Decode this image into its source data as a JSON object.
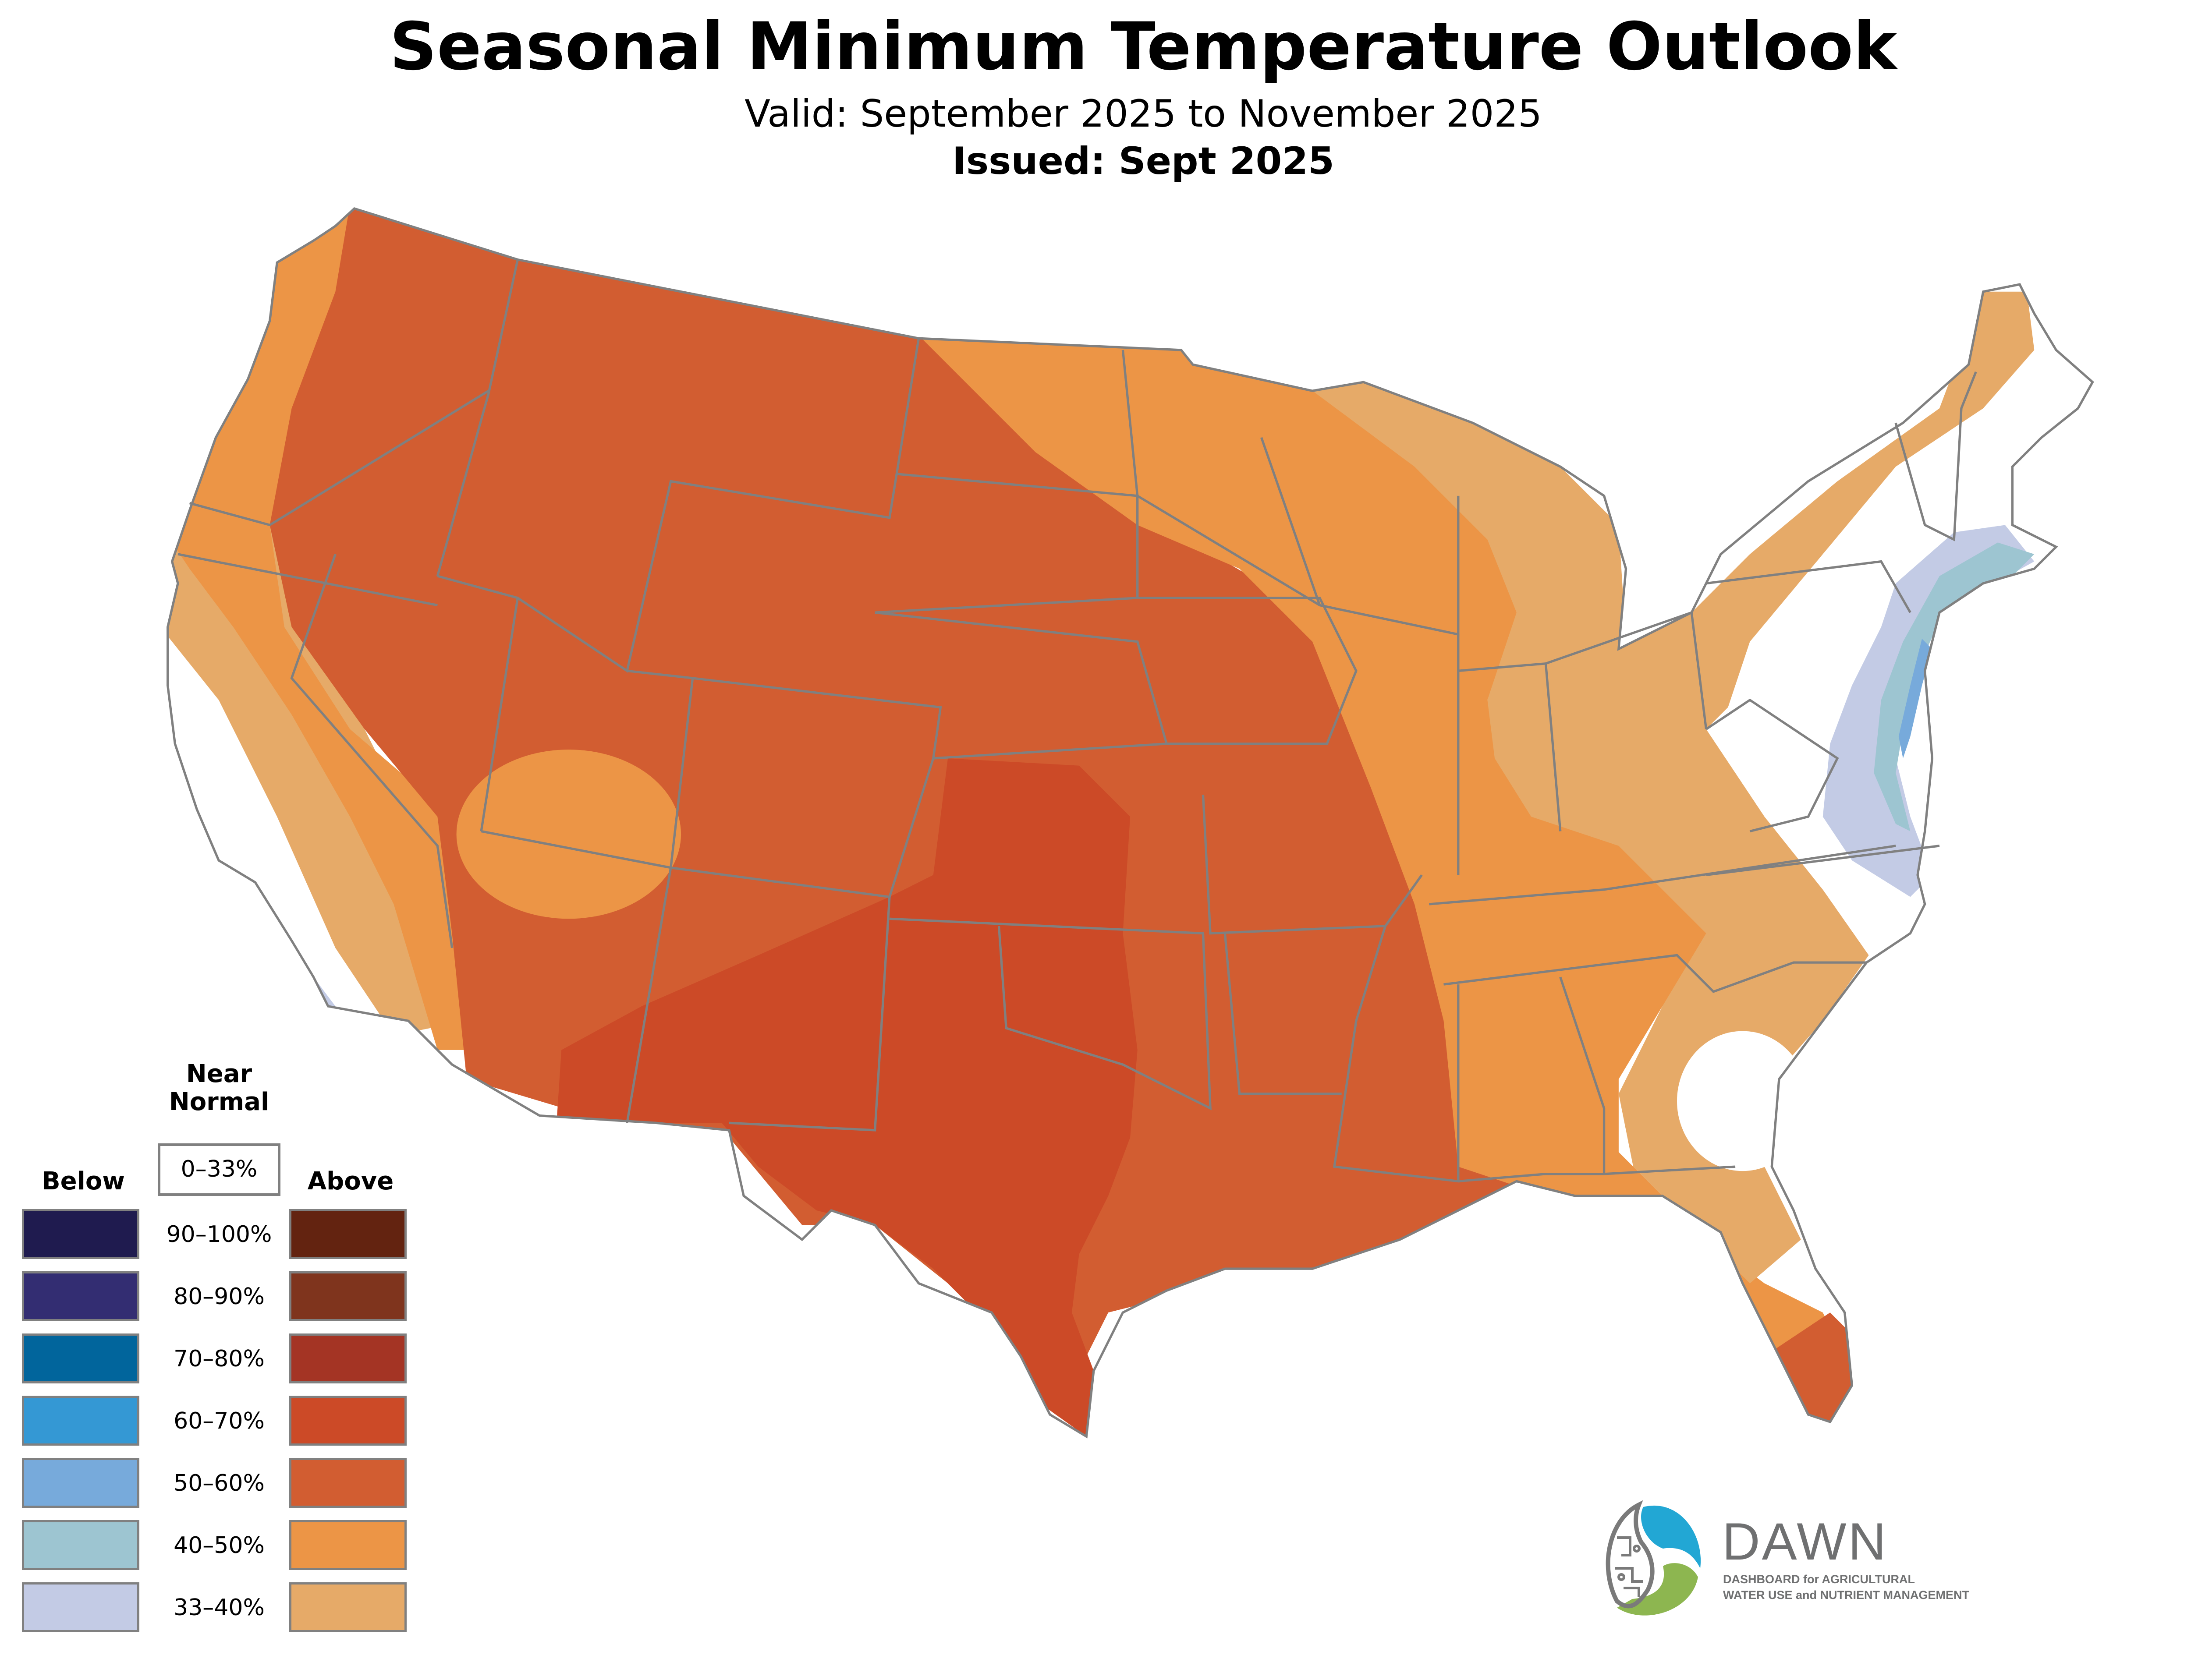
{
  "header": {
    "title": "Seasonal Minimum Temperature Outlook",
    "valid": "Valid: September 2025 to November 2025",
    "issued": "Issued: Sept 2025"
  },
  "legend": {
    "below_label": "Below",
    "above_label": "Above",
    "near_normal_label_line1": "Near",
    "near_normal_label_line2": "Normal",
    "near_normal_range": "0–33%",
    "rows": [
      {
        "range": "90–100%",
        "below_color": "#1f1b4f",
        "above_color": "#632310"
      },
      {
        "range": "80–90%",
        "below_color": "#332d72",
        "above_color": "#7f341d"
      },
      {
        "range": "70–80%",
        "below_color": "#01659c",
        "above_color": "#a43424"
      },
      {
        "range": "60–70%",
        "below_color": "#3498d4",
        "above_color": "#cc4a27"
      },
      {
        "range": "50–60%",
        "below_color": "#77aadb",
        "above_color": "#d25d31"
      },
      {
        "range": "40–50%",
        "below_color": "#9dc5d1",
        "above_color": "#ec9546"
      },
      {
        "range": "33–40%",
        "below_color": "#c3cbe5",
        "above_color": "#e6aa68"
      }
    ]
  },
  "map": {
    "regions": [
      {
        "name": "above-33-40-west-coast",
        "category": "Above",
        "range": "33–40%"
      },
      {
        "name": "above-40-50-west-coast",
        "category": "Above",
        "range": "40–50%"
      },
      {
        "name": "above-50-60-interior-west",
        "category": "Above",
        "range": "50–60%"
      },
      {
        "name": "above-40-50-four-corners",
        "category": "Above",
        "range": "40–50%"
      },
      {
        "name": "above-60-70-southern-plains",
        "category": "Above",
        "range": "60–70%"
      },
      {
        "name": "above-40-50-midwest-southeast",
        "category": "Above",
        "range": "40–50%"
      },
      {
        "name": "above-33-40-great-lakes-southeast",
        "category": "Above",
        "range": "33–40%"
      },
      {
        "name": "above-50-60-south-florida",
        "category": "Above",
        "range": "50–60%"
      },
      {
        "name": "below-33-40-northeast-coast",
        "category": "Below",
        "range": "33–40%"
      },
      {
        "name": "below-40-50-northeast-coast",
        "category": "Below",
        "range": "40–50%"
      },
      {
        "name": "below-50-60-nj-delmarva",
        "category": "Below",
        "range": "50–60%"
      },
      {
        "name": "below-33-40-southern-california",
        "category": "Below",
        "range": "33–40%"
      }
    ]
  },
  "logo": {
    "name": "DAWN",
    "tagline_line1": "DASHBOARD for AGRICULTURAL",
    "tagline_line2": "WATER USE and NUTRIENT MANAGEMENT",
    "colors": {
      "blue": "#22a7d4",
      "green": "#8db650",
      "gray": "#6f7071"
    }
  }
}
